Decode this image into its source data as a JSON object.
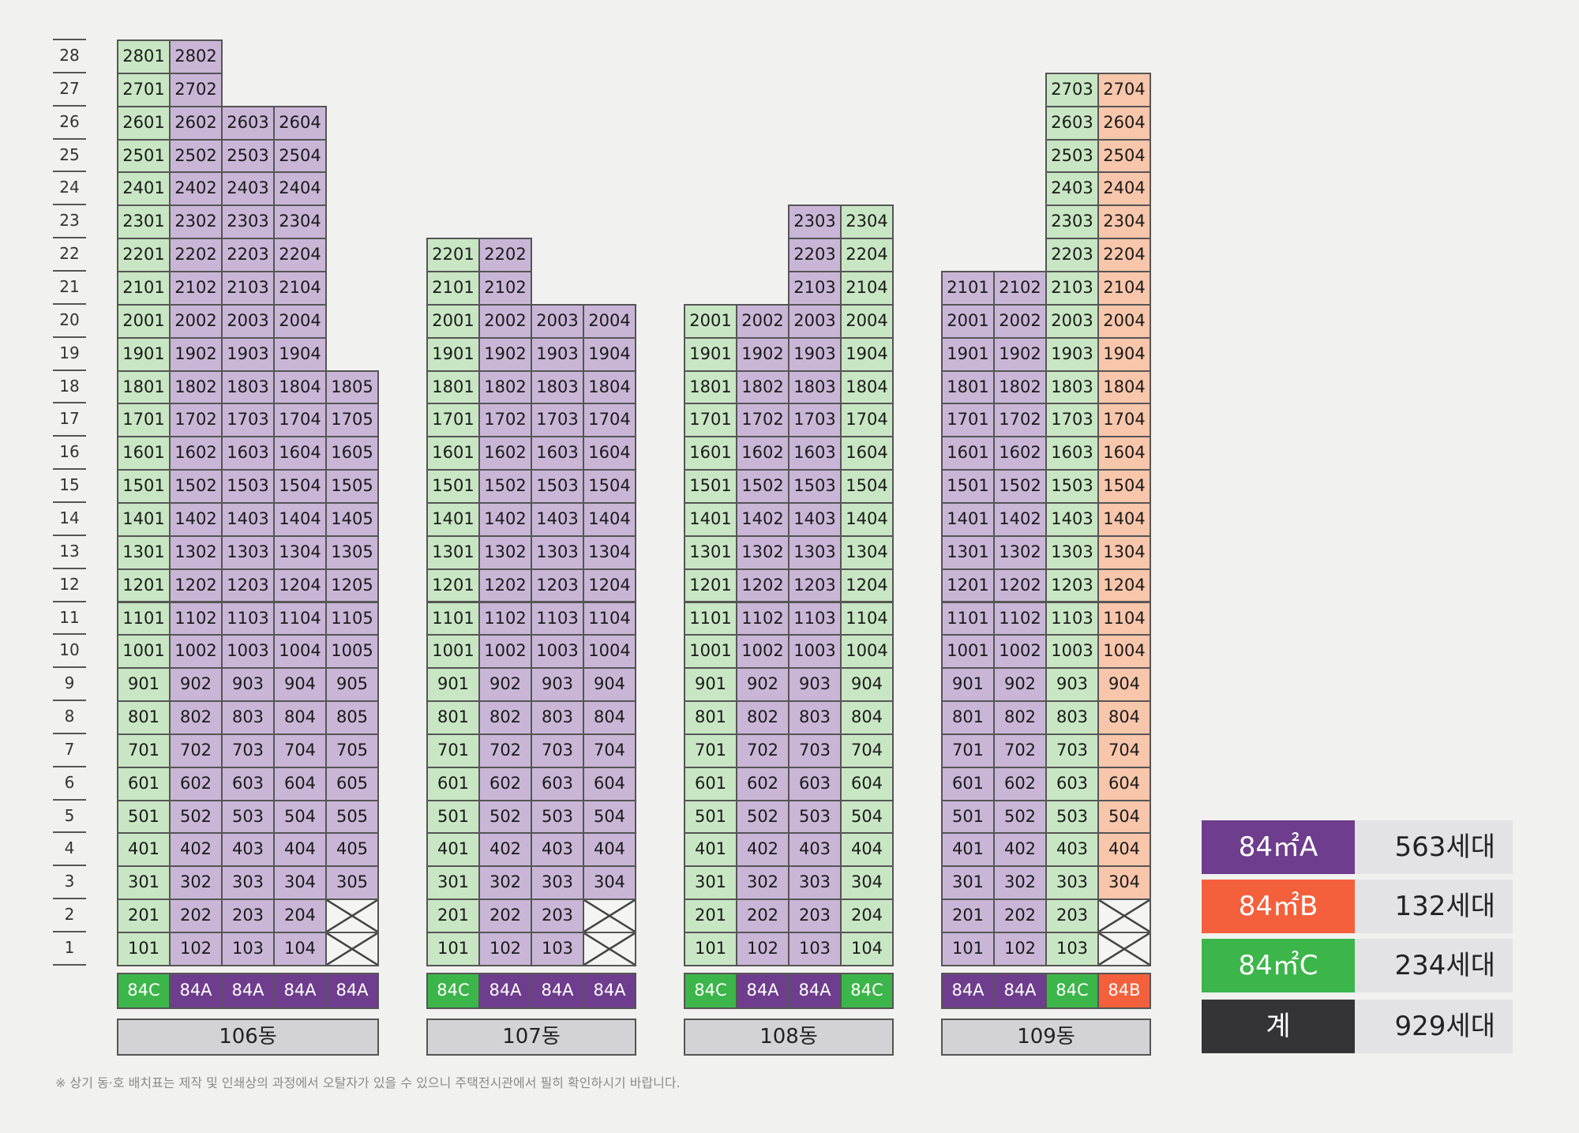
{
  "floors": [
    1,
    2,
    3,
    4,
    5,
    6,
    7,
    8,
    9,
    10,
    11,
    12,
    13,
    14,
    15,
    16,
    17,
    18,
    19,
    20,
    21,
    22,
    23,
    24,
    25,
    26,
    27,
    28
  ],
  "buildings": [
    {
      "label": "106동",
      "lines": [
        {
          "type": "84C",
          "type_code": "C",
          "floors": [
            1,
            28
          ]
        },
        {
          "type": "84A",
          "type_code": "A",
          "floors": [
            1,
            28
          ]
        },
        {
          "type": "84A",
          "type_code": "A",
          "floors": [
            1,
            26
          ]
        },
        {
          "type": "84A",
          "type_code": "A",
          "floors": [
            1,
            26
          ]
        },
        {
          "type": "84A",
          "type_code": "A",
          "floors": [
            3,
            18
          ],
          "void_floors": [
            1,
            2
          ]
        }
      ]
    },
    {
      "label": "107동",
      "lines": [
        {
          "type": "84C",
          "type_code": "C",
          "floors": [
            1,
            22
          ]
        },
        {
          "type": "84A",
          "type_code": "A",
          "floors": [
            1,
            22
          ]
        },
        {
          "type": "84A",
          "type_code": "A",
          "floors": [
            1,
            20
          ]
        },
        {
          "type": "84A",
          "type_code": "A",
          "floors": [
            3,
            20
          ],
          "void_floors": [
            1,
            2
          ]
        }
      ]
    },
    {
      "label": "108동",
      "lines": [
        {
          "type": "84C",
          "type_code": "C",
          "floors": [
            1,
            20
          ]
        },
        {
          "type": "84A",
          "type_code": "A",
          "floors": [
            1,
            20
          ]
        },
        {
          "type": "84A",
          "type_code": "A",
          "floors": [
            1,
            23
          ]
        },
        {
          "type": "84C",
          "type_code": "C",
          "floors": [
            1,
            23
          ]
        }
      ]
    },
    {
      "label": "109동",
      "lines": [
        {
          "type": "84A",
          "type_code": "A",
          "floors": [
            1,
            21
          ]
        },
        {
          "type": "84A",
          "type_code": "A",
          "floors": [
            1,
            21
          ]
        },
        {
          "type": "84C",
          "type_code": "C",
          "floors": [
            1,
            27
          ]
        },
        {
          "type": "84B",
          "type_code": "B",
          "floors": [
            3,
            27
          ],
          "void_floors": [
            1,
            2
          ]
        }
      ]
    }
  ],
  "legend": [
    {
      "label": "84㎡A",
      "count": "563세대",
      "color": "#6e3d8d"
    },
    {
      "label": "84㎡B",
      "count": "132세대",
      "color": "#f5603c"
    },
    {
      "label": "84㎡C",
      "count": "234세대",
      "color": "#3cb54a"
    },
    {
      "label": "계",
      "count": "929세대",
      "color": "#343436"
    }
  ],
  "unit_colors": {
    "A": "#c9b6d7",
    "B": "#f8c6ab",
    "C": "#c8e6c3"
  },
  "footnote": "※ 상기 동·호 배치표는 제작 및 인쇄상의 과정에서 오탈자가 있을 수 있으니 주택전시관에서 필히 확인하시기 바랍니다."
}
